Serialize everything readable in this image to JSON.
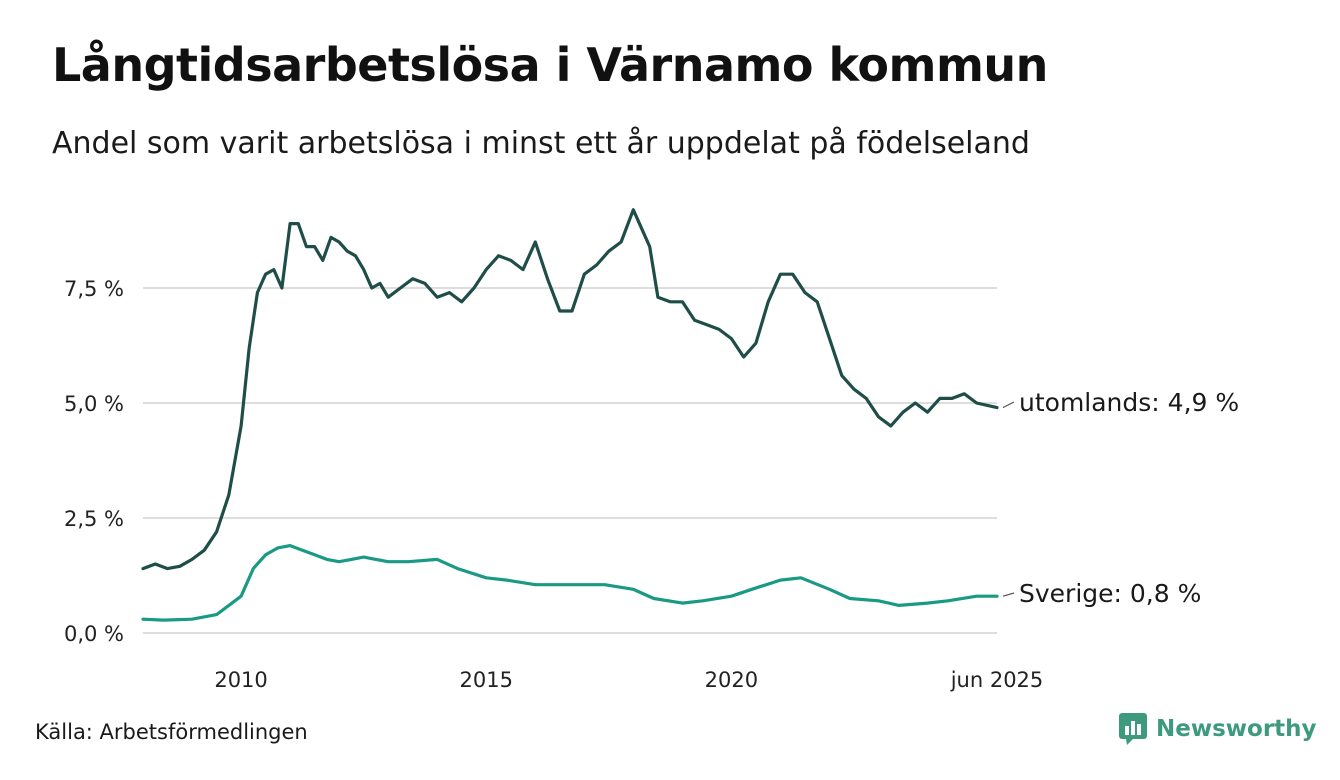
{
  "header": {
    "title": "Långtidsarbetslösa i Värnamo kommun",
    "subtitle": "Andel som varit arbetslösa i minst ett år uppdelat på födelseland"
  },
  "footer": {
    "source": "Källa: Arbetsförmedlingen",
    "brand": "Newsworthy",
    "brand_icon": "newsworthy-logo-icon"
  },
  "colors": {
    "utomlands": "#1f4d47",
    "sverige": "#1a9a84",
    "grid": "#dddddd",
    "brand": "#3d9a7d"
  },
  "chart_data": {
    "type": "line",
    "title": "Långtidsarbetslösa i Värnamo kommun",
    "subtitle": "Andel som varit arbetslösa i minst ett år uppdelat på födelseland",
    "xlabel": "",
    "ylabel": "",
    "x_ticks": [
      "2010",
      "2015",
      "2020",
      "jun 2025"
    ],
    "y_ticks": [
      "0,0 %",
      "2,5 %",
      "5,0 %",
      "7,5 %"
    ],
    "ylim": [
      0,
      9.5
    ],
    "xlim": [
      "2008-01",
      "2025-06"
    ],
    "grid": "horizontal",
    "legend": "end-labels",
    "series": [
      {
        "key": "utomlands",
        "name": "utomlands",
        "end_label": "utomlands: 4,9 %",
        "points": [
          [
            "2008-01",
            1.4
          ],
          [
            "2008-04",
            1.5
          ],
          [
            "2008-07",
            1.4
          ],
          [
            "2008-10",
            1.45
          ],
          [
            "2009-01",
            1.6
          ],
          [
            "2009-04",
            1.8
          ],
          [
            "2009-07",
            2.2
          ],
          [
            "2009-10",
            3.0
          ],
          [
            "2010-01",
            4.5
          ],
          [
            "2010-03",
            6.2
          ],
          [
            "2010-05",
            7.4
          ],
          [
            "2010-07",
            7.8
          ],
          [
            "2010-09",
            7.9
          ],
          [
            "2010-11",
            7.5
          ],
          [
            "2011-01",
            8.9
          ],
          [
            "2011-03",
            8.9
          ],
          [
            "2011-05",
            8.4
          ],
          [
            "2011-07",
            8.4
          ],
          [
            "2011-09",
            8.1
          ],
          [
            "2011-11",
            8.6
          ],
          [
            "2012-01",
            8.5
          ],
          [
            "2012-03",
            8.3
          ],
          [
            "2012-05",
            8.2
          ],
          [
            "2012-07",
            7.9
          ],
          [
            "2012-09",
            7.5
          ],
          [
            "2012-11",
            7.6
          ],
          [
            "2013-01",
            7.3
          ],
          [
            "2013-04",
            7.5
          ],
          [
            "2013-07",
            7.7
          ],
          [
            "2013-10",
            7.6
          ],
          [
            "2014-01",
            7.3
          ],
          [
            "2014-04",
            7.4
          ],
          [
            "2014-07",
            7.2
          ],
          [
            "2014-10",
            7.5
          ],
          [
            "2015-01",
            7.9
          ],
          [
            "2015-04",
            8.2
          ],
          [
            "2015-07",
            8.1
          ],
          [
            "2015-10",
            7.9
          ],
          [
            "2016-01",
            8.5
          ],
          [
            "2016-04",
            7.7
          ],
          [
            "2016-07",
            7.0
          ],
          [
            "2016-10",
            7.0
          ],
          [
            "2017-01",
            7.8
          ],
          [
            "2017-04",
            8.0
          ],
          [
            "2017-07",
            8.3
          ],
          [
            "2017-10",
            8.5
          ],
          [
            "2018-01",
            9.2
          ],
          [
            "2018-03",
            8.8
          ],
          [
            "2018-05",
            8.4
          ],
          [
            "2018-07",
            7.3
          ],
          [
            "2018-10",
            7.2
          ],
          [
            "2019-01",
            7.2
          ],
          [
            "2019-04",
            6.8
          ],
          [
            "2019-07",
            6.7
          ],
          [
            "2019-10",
            6.6
          ],
          [
            "2020-01",
            6.4
          ],
          [
            "2020-04",
            6.0
          ],
          [
            "2020-07",
            6.3
          ],
          [
            "2020-10",
            7.2
          ],
          [
            "2021-01",
            7.8
          ],
          [
            "2021-04",
            7.8
          ],
          [
            "2021-07",
            7.4
          ],
          [
            "2021-10",
            7.2
          ],
          [
            "2022-01",
            6.4
          ],
          [
            "2022-04",
            5.6
          ],
          [
            "2022-07",
            5.3
          ],
          [
            "2022-10",
            5.1
          ],
          [
            "2023-01",
            4.7
          ],
          [
            "2023-04",
            4.5
          ],
          [
            "2023-07",
            4.8
          ],
          [
            "2023-10",
            5.0
          ],
          [
            "2024-01",
            4.8
          ],
          [
            "2024-04",
            5.1
          ],
          [
            "2024-07",
            5.1
          ],
          [
            "2024-10",
            5.2
          ],
          [
            "2025-01",
            5.0
          ],
          [
            "2025-06",
            4.9
          ]
        ]
      },
      {
        "key": "sverige",
        "name": "Sverige",
        "end_label": "Sverige: 0,8 %",
        "points": [
          [
            "2008-01",
            0.3
          ],
          [
            "2008-06",
            0.28
          ],
          [
            "2009-01",
            0.3
          ],
          [
            "2009-07",
            0.4
          ],
          [
            "2010-01",
            0.8
          ],
          [
            "2010-04",
            1.4
          ],
          [
            "2010-07",
            1.7
          ],
          [
            "2010-10",
            1.85
          ],
          [
            "2011-01",
            1.9
          ],
          [
            "2011-04",
            1.8
          ],
          [
            "2011-07",
            1.7
          ],
          [
            "2011-10",
            1.6
          ],
          [
            "2012-01",
            1.55
          ],
          [
            "2012-04",
            1.6
          ],
          [
            "2012-07",
            1.65
          ],
          [
            "2012-10",
            1.6
          ],
          [
            "2013-01",
            1.55
          ],
          [
            "2013-06",
            1.55
          ],
          [
            "2014-01",
            1.6
          ],
          [
            "2014-06",
            1.4
          ],
          [
            "2015-01",
            1.2
          ],
          [
            "2015-06",
            1.15
          ],
          [
            "2016-01",
            1.05
          ],
          [
            "2016-06",
            1.05
          ],
          [
            "2017-01",
            1.05
          ],
          [
            "2017-06",
            1.05
          ],
          [
            "2018-01",
            0.95
          ],
          [
            "2018-06",
            0.75
          ],
          [
            "2019-01",
            0.65
          ],
          [
            "2019-06",
            0.7
          ],
          [
            "2020-01",
            0.8
          ],
          [
            "2020-06",
            0.95
          ],
          [
            "2021-01",
            1.15
          ],
          [
            "2021-06",
            1.2
          ],
          [
            "2022-01",
            0.95
          ],
          [
            "2022-06",
            0.75
          ],
          [
            "2023-01",
            0.7
          ],
          [
            "2023-06",
            0.6
          ],
          [
            "2024-01",
            0.65
          ],
          [
            "2024-06",
            0.7
          ],
          [
            "2025-01",
            0.8
          ],
          [
            "2025-06",
            0.8
          ]
        ]
      }
    ]
  }
}
